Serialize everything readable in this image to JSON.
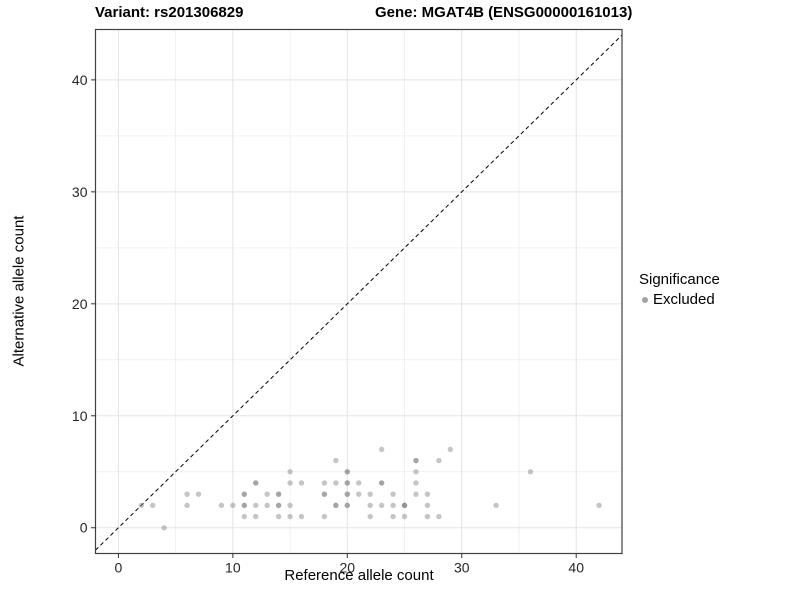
{
  "header": {
    "variant_title": "Variant: rs201306829",
    "gene_title": "Gene: MGAT4B (ENSG00000161013)"
  },
  "chart_data": {
    "type": "scatter",
    "title_variant": "Variant: rs201306829",
    "title_gene": "Gene: MGAT4B (ENSG00000161013)",
    "xlabel": "Reference allele count",
    "ylabel": "Alternative allele count",
    "xlim": [
      -2.0,
      44.0
    ],
    "ylim": [
      -2.3,
      44.5
    ],
    "x_ticks": [
      0,
      10,
      20,
      30,
      40
    ],
    "y_ticks": [
      0,
      10,
      20,
      30,
      40
    ],
    "x_minor_gridlines": [
      5,
      15,
      25,
      35
    ],
    "y_minor_gridlines": [
      5,
      15,
      25,
      35
    ],
    "grid": true,
    "identity_line": {
      "type": "y=x",
      "style": "dashed"
    },
    "legend": {
      "position": "right",
      "title": "Significance",
      "items": [
        {
          "label": "Excluded"
        }
      ]
    },
    "series": [
      {
        "name": "Excluded",
        "points": [
          [
            4,
            0
          ],
          [
            11,
            1
          ],
          [
            12,
            1
          ],
          [
            14,
            1
          ],
          [
            15,
            1
          ],
          [
            16,
            1
          ],
          [
            18,
            1
          ],
          [
            22,
            1
          ],
          [
            24,
            1
          ],
          [
            25,
            1
          ],
          [
            27,
            1
          ],
          [
            28,
            1
          ],
          [
            2,
            2
          ],
          [
            3,
            2
          ],
          [
            6,
            2
          ],
          [
            9,
            2
          ],
          [
            10,
            2
          ],
          [
            11,
            2,
            2
          ],
          [
            12,
            2
          ],
          [
            13,
            2
          ],
          [
            14,
            2,
            2
          ],
          [
            15,
            2
          ],
          [
            19,
            2,
            2
          ],
          [
            20,
            2,
            2
          ],
          [
            22,
            2
          ],
          [
            23,
            2
          ],
          [
            24,
            2
          ],
          [
            25,
            2,
            3
          ],
          [
            27,
            2
          ],
          [
            33,
            2
          ],
          [
            42,
            2
          ],
          [
            6,
            3
          ],
          [
            7,
            3
          ],
          [
            11,
            3,
            2
          ],
          [
            13,
            3
          ],
          [
            14,
            3,
            2
          ],
          [
            18,
            3,
            2
          ],
          [
            20,
            3,
            2
          ],
          [
            21,
            3
          ],
          [
            22,
            3
          ],
          [
            24,
            3
          ],
          [
            26,
            3
          ],
          [
            27,
            3
          ],
          [
            12,
            4,
            2
          ],
          [
            15,
            4
          ],
          [
            16,
            4
          ],
          [
            18,
            4
          ],
          [
            19,
            4
          ],
          [
            20,
            4,
            2
          ],
          [
            21,
            4
          ],
          [
            23,
            4,
            2
          ],
          [
            26,
            4
          ],
          [
            15,
            5
          ],
          [
            20,
            5,
            2
          ],
          [
            26,
            5
          ],
          [
            36,
            5
          ],
          [
            19,
            6
          ],
          [
            26,
            6,
            2
          ],
          [
            28,
            6
          ],
          [
            23,
            7
          ],
          [
            29,
            7
          ]
        ]
      }
    ]
  },
  "colors": {
    "background": "#ffffff",
    "point_fill": "#7f7f7f",
    "legend_dot": "#a3a3a3",
    "grid_major": "#e3e3e3",
    "grid_minor": "#f1f1f1",
    "panel_border": "#404040",
    "tick": "#333333",
    "tick_label": "#262626",
    "identity_line": "#000000"
  }
}
